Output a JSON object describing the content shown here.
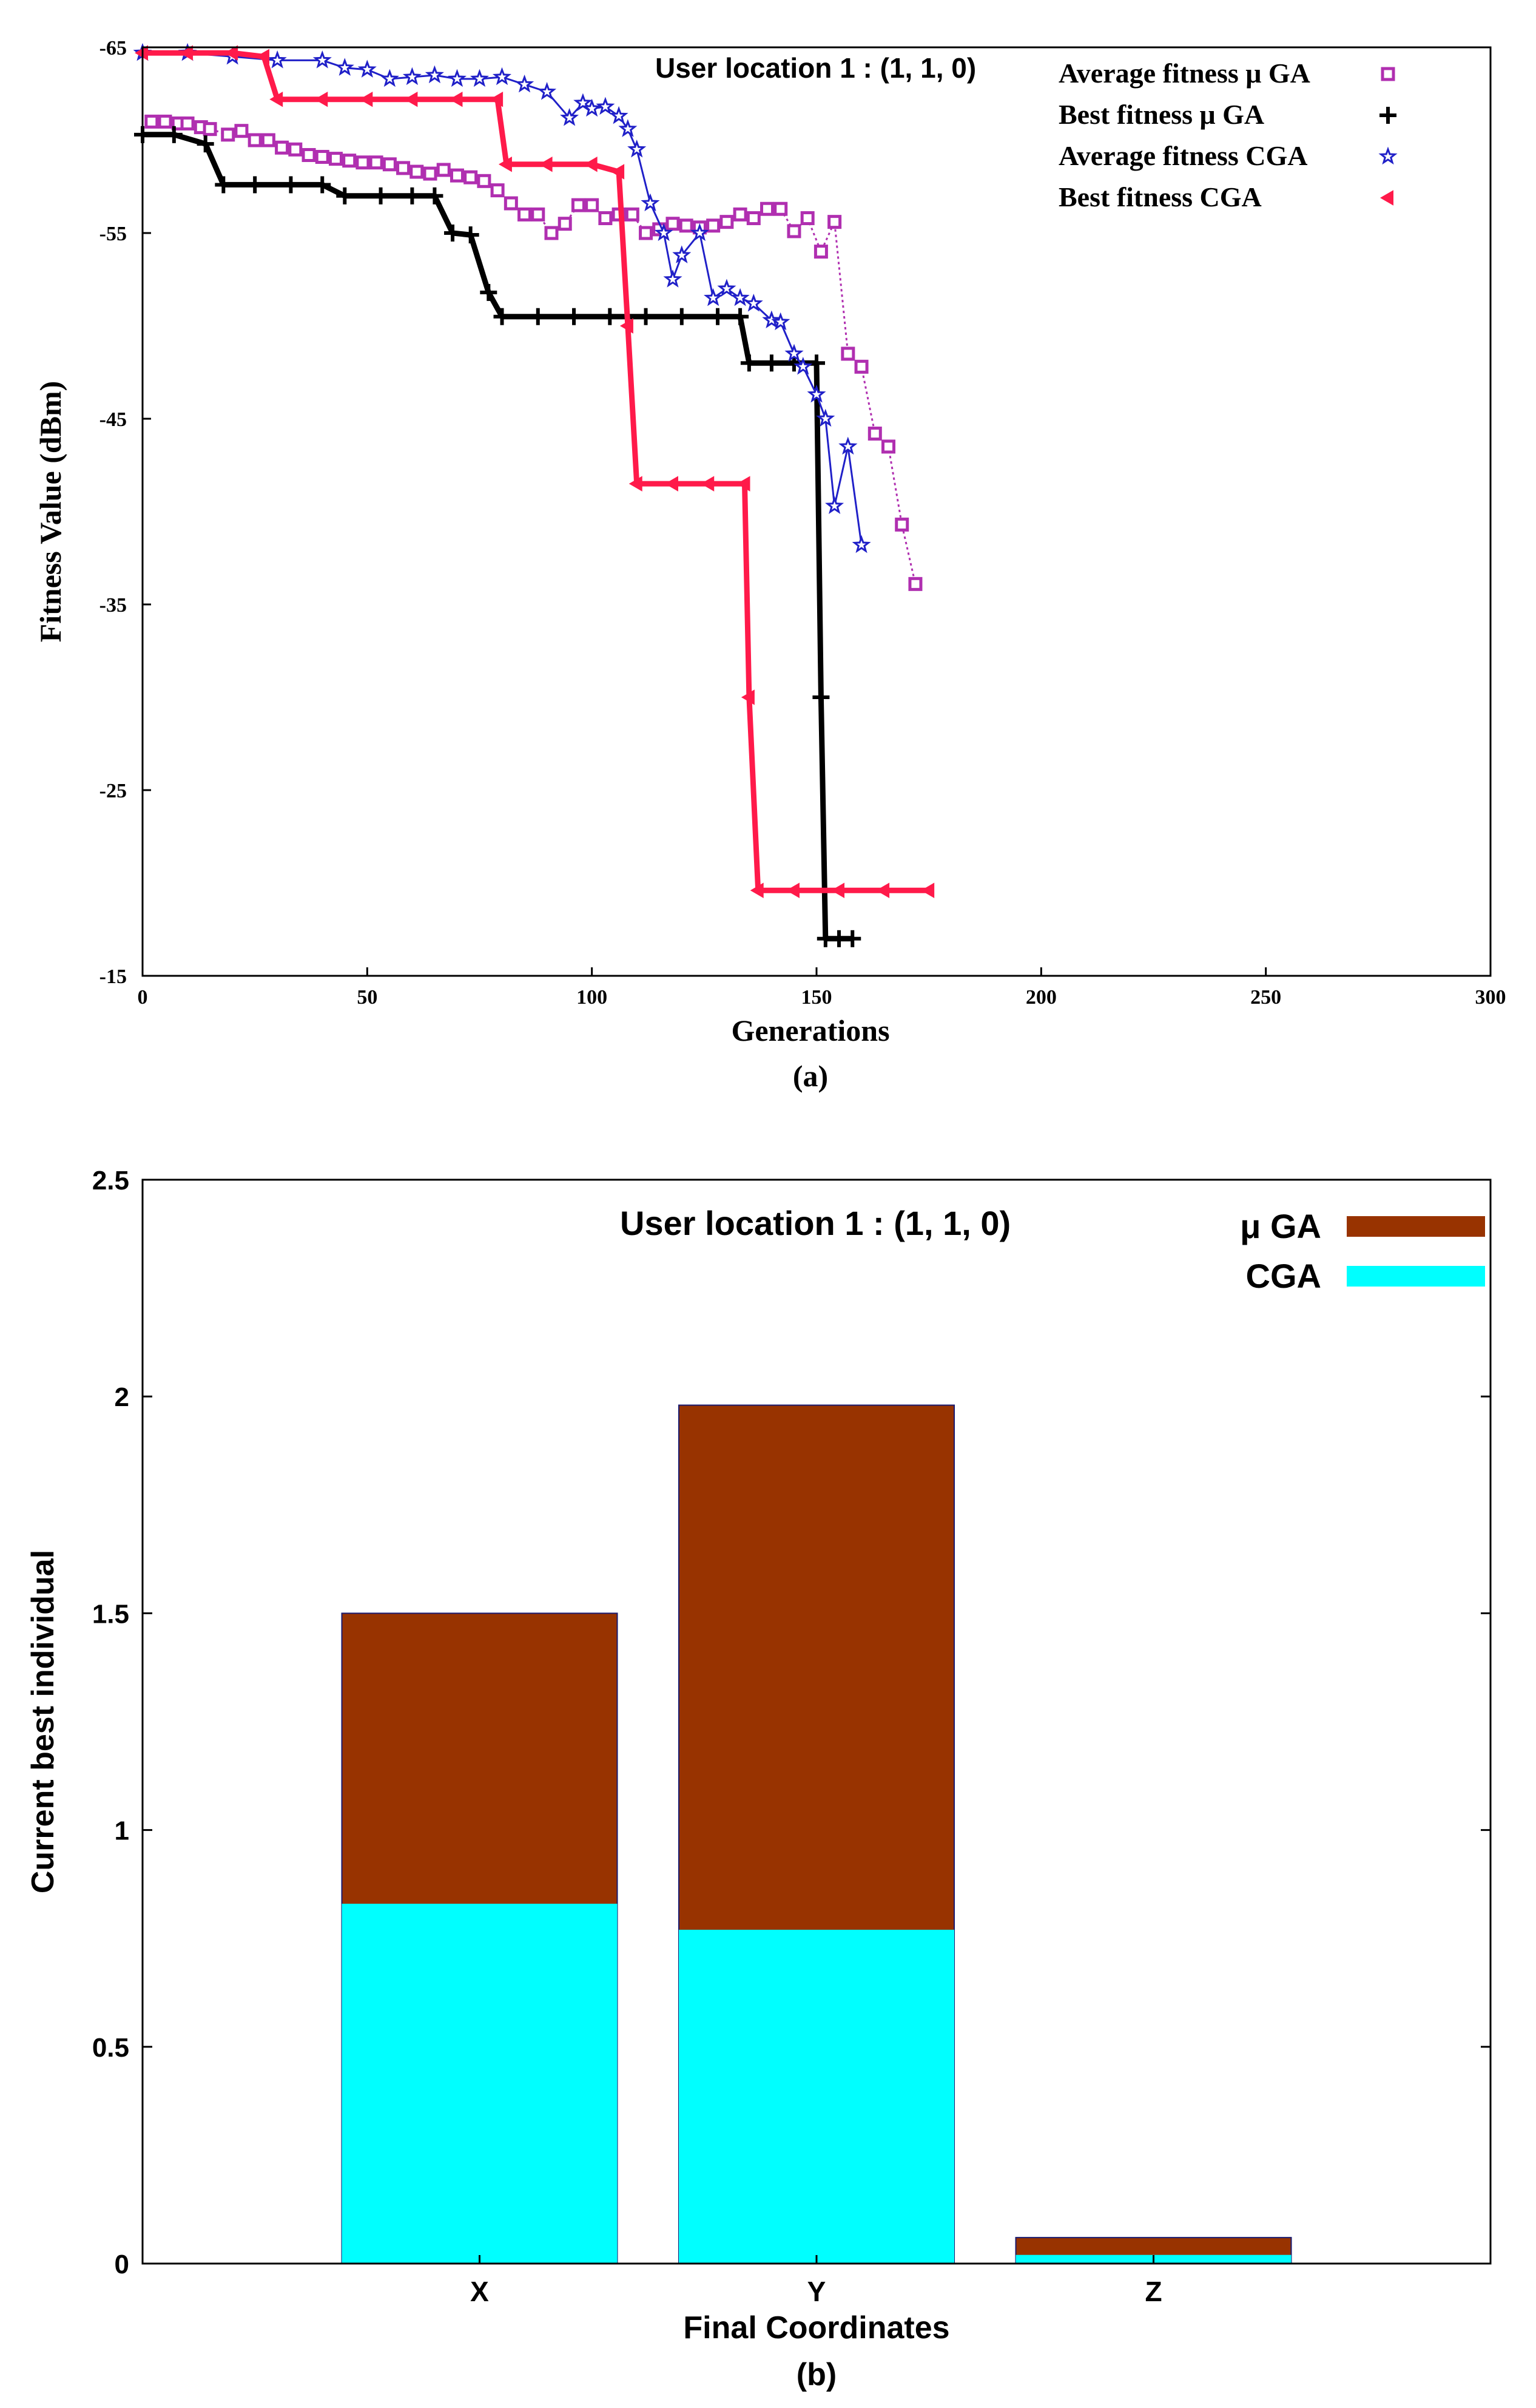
{
  "chart_data": [
    {
      "type": "line",
      "panel_label": "(a)",
      "annotation": "User location 1 : (1, 1, 0)",
      "xlabel": "Generations",
      "ylabel": "Fitness Value (dBm)",
      "xlim": [
        0,
        300
      ],
      "ylim": [
        -65,
        -15
      ],
      "y_axis_inverted": true,
      "xticks": [
        0,
        50,
        100,
        150,
        200,
        250,
        300
      ],
      "yticks": [
        -65,
        -55,
        -45,
        -35,
        -25,
        -15
      ],
      "legend_position": "top-right",
      "series": [
        {
          "name": "Average fitness μ GA",
          "color": "#b02fb0",
          "marker": "square",
          "x": [
            2,
            5,
            8,
            10,
            13,
            15,
            19,
            22,
            25,
            28,
            31,
            34,
            37,
            40,
            43,
            46,
            49,
            52,
            55,
            58,
            61,
            64,
            67,
            70,
            73,
            76,
            79,
            82,
            85,
            88,
            91,
            94,
            97,
            100,
            103,
            106,
            109,
            112,
            115,
            118,
            121,
            124,
            127,
            130,
            133,
            136,
            139,
            142,
            145,
            148,
            151,
            154,
            157,
            160,
            163,
            166,
            169,
            172
          ],
          "y": [
            -61,
            -61,
            -60.9,
            -60.9,
            -60.7,
            -60.6,
            -60.3,
            -60.5,
            -60,
            -60,
            -59.6,
            -59.5,
            -59.2,
            -59.1,
            -59,
            -58.9,
            -58.8,
            -58.8,
            -58.7,
            -58.5,
            -58.3,
            -58.2,
            -58.4,
            -58.1,
            -58,
            -57.8,
            -57.3,
            -56.6,
            -56,
            -56,
            -55,
            -55.5,
            -56.5,
            -56.5,
            -55.8,
            -56,
            -56,
            -55,
            -55.2,
            -55.5,
            -55.4,
            -55.3,
            -55.4,
            -55.6,
            -56,
            -55.8,
            -56.3,
            -56.3,
            -55.1,
            -55.8,
            -54,
            -55.6,
            -48.5,
            -47.8,
            -44.2,
            -43.5,
            -39.3,
            -36.1
          ]
        },
        {
          "name": "Best fitness μ GA",
          "color": "#000000",
          "marker": "plus",
          "x": [
            0,
            7,
            14,
            18,
            25,
            33,
            40,
            45,
            53,
            60,
            65,
            69,
            73,
            77,
            80,
            88,
            96,
            104,
            112,
            120,
            128,
            133,
            135,
            140,
            145,
            150,
            151,
            152,
            155,
            158
          ],
          "y": [
            -60.3,
            -60.3,
            -59.8,
            -57.6,
            -57.6,
            -57.6,
            -57.6,
            -57,
            -57,
            -57,
            -57,
            -55,
            -54.9,
            -51.8,
            -50.5,
            -50.5,
            -50.5,
            -50.5,
            -50.5,
            -50.5,
            -50.5,
            -50.5,
            -48,
            -48,
            -48,
            -48,
            -30,
            -17,
            -17,
            -17
          ]
        },
        {
          "name": "Average fitness CGA",
          "color": "#2020c8",
          "marker": "star",
          "x": [
            0,
            10,
            20,
            30,
            40,
            45,
            50,
            55,
            60,
            65,
            70,
            75,
            80,
            85,
            90,
            95,
            98,
            100,
            103,
            106,
            108,
            110,
            113,
            116,
            118,
            120,
            124,
            127,
            130,
            133,
            136,
            140,
            142,
            145,
            147,
            150,
            152,
            154,
            157,
            160
          ],
          "y": [
            -64.7,
            -64.7,
            -64.5,
            -64.3,
            -64.3,
            -63.9,
            -63.8,
            -63.3,
            -63.4,
            -63.5,
            -63.3,
            -63.3,
            -63.4,
            -63,
            -62.6,
            -61.2,
            -62,
            -61.7,
            -61.8,
            -61.3,
            -60.6,
            -59.5,
            -56.6,
            -55,
            -52.5,
            -53.8,
            -55,
            -51.5,
            -52,
            -51.5,
            -51.2,
            -50.3,
            -50.2,
            -48.5,
            -47.8,
            -46.3,
            -45,
            -40.3,
            -43.5,
            -38.2
          ]
        },
        {
          "name": "Best fitness CGA",
          "color": "#ff1a4a",
          "marker": "triangle-left",
          "x": [
            0,
            10,
            20,
            27,
            30,
            40,
            50,
            60,
            70,
            79,
            81,
            90,
            100,
            106,
            108,
            110,
            118,
            126,
            134,
            135,
            137,
            145,
            155,
            165,
            175
          ],
          "y": [
            -64.7,
            -64.7,
            -64.7,
            -64.5,
            -62.2,
            -62.2,
            -62.2,
            -62.2,
            -62.2,
            -62.2,
            -58.7,
            -58.7,
            -58.7,
            -58.3,
            -50,
            -41.5,
            -41.5,
            -41.5,
            -41.5,
            -30,
            -19.6,
            -19.6,
            -19.6,
            -19.6,
            -19.6
          ]
        }
      ]
    },
    {
      "type": "bar",
      "stacked": true,
      "panel_label": "(b)",
      "annotation": "User location 1 : (1, 1, 0)",
      "xlabel": "Final Coordinates",
      "ylabel": "Current best individual",
      "categories": [
        "X",
        "Y",
        "Z"
      ],
      "ylim": [
        0,
        2.5
      ],
      "yticks": [
        0,
        0.5,
        1,
        1.5,
        2,
        2.5
      ],
      "ytick_labels": [
        "0",
        "0.5",
        "1",
        "1.5",
        "2",
        "2.5"
      ],
      "legend_position": "top-right",
      "series": [
        {
          "name": "μ GA",
          "color": "#983300",
          "values": [
            1.5,
            1.98,
            0.06
          ]
        },
        {
          "name": "CGA",
          "color": "#00ffff",
          "values": [
            0.83,
            0.77,
            0.02
          ]
        }
      ]
    }
  ]
}
